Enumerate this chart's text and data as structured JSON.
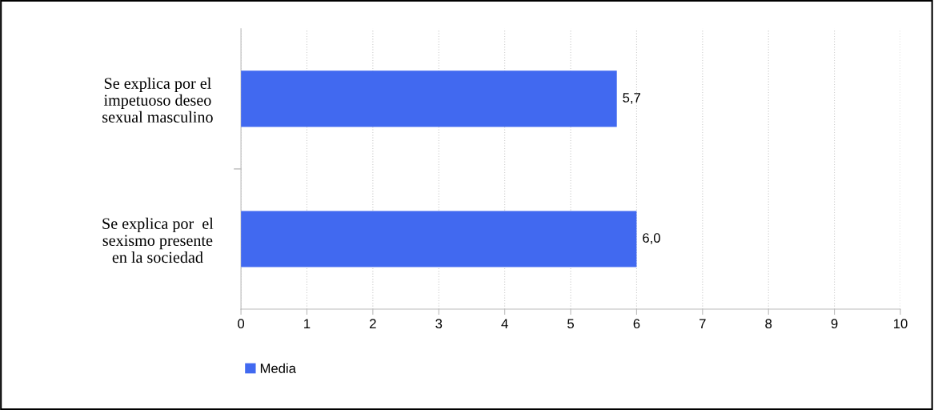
{
  "chart_data": {
    "type": "bar",
    "orientation": "horizontal",
    "categories": [
      "Se explica por el\nimpetuoso deseo\nsexual masculino",
      "Se explica por  el\nsexismo presente\nen la sociedad"
    ],
    "series": [
      {
        "name": "Media",
        "color": "#4169f0",
        "values": [
          5.7,
          6.0
        ],
        "value_labels": [
          "5,7",
          "6,0"
        ]
      }
    ],
    "xlim": [
      0,
      10
    ],
    "xticks": [
      0,
      1,
      2,
      3,
      4,
      5,
      6,
      7,
      8,
      9,
      10
    ],
    "grid": "x",
    "legend": "bottom left"
  }
}
